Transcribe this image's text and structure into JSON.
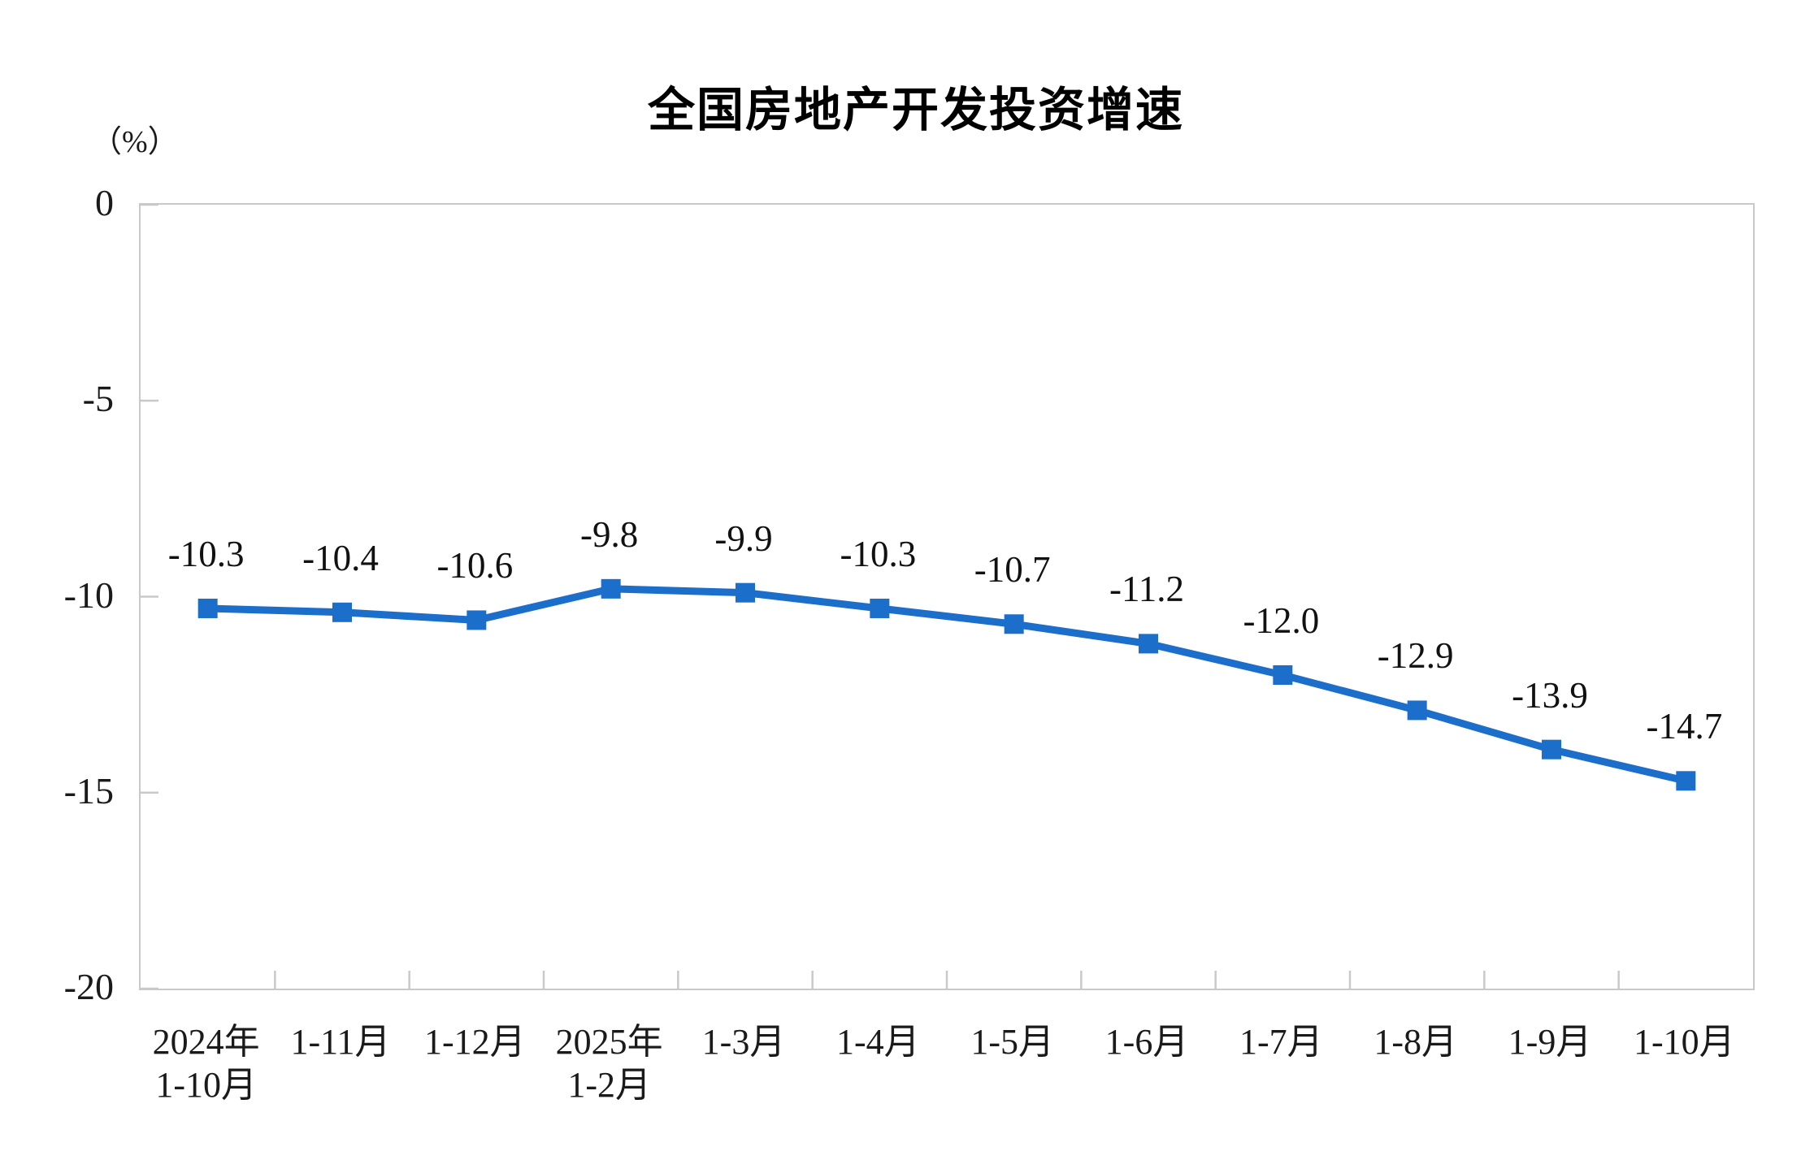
{
  "title": "全国房地产开发投资增速",
  "unit_label": "（%）",
  "chart_data": {
    "type": "line",
    "title": "全国房地产开发投资增速",
    "ylabel": "（%）",
    "categories": [
      [
        "2024年",
        "1-10月"
      ],
      [
        "1-11月"
      ],
      [
        "1-12月"
      ],
      [
        "2025年",
        "1-2月"
      ],
      [
        "1-3月"
      ],
      [
        "1-4月"
      ],
      [
        "1-5月"
      ],
      [
        "1-6月"
      ],
      [
        "1-7月"
      ],
      [
        "1-8月"
      ],
      [
        "1-9月"
      ],
      [
        "1-10月"
      ]
    ],
    "values": [
      -10.3,
      -10.4,
      -10.6,
      -9.8,
      -9.9,
      -10.3,
      -10.7,
      -11.2,
      -12.0,
      -12.9,
      -13.9,
      -14.7
    ],
    "point_labels": [
      "-10.3",
      "-10.4",
      "-10.6",
      "-9.8",
      "-9.9",
      "-10.3",
      "-10.7",
      "-11.2",
      "-12.0",
      "-12.9",
      "-13.9",
      "-14.7"
    ],
    "ylim": [
      -20,
      0
    ],
    "yticks": [
      {
        "label": "0",
        "value": 0
      },
      {
        "label": "-5",
        "value": -5
      },
      {
        "label": "-10",
        "value": -10
      },
      {
        "label": "-15",
        "value": -15
      },
      {
        "label": "-20",
        "value": -20
      }
    ],
    "grid": false,
    "legend": "none",
    "marker": "square",
    "line_color": "#1b6ec9",
    "axis_color": "#c9c9c9",
    "text_color": "#1a1a1a"
  }
}
